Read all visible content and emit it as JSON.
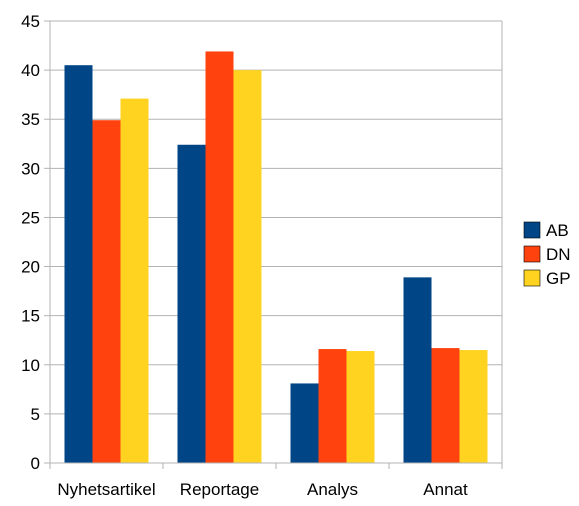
{
  "chart_data": {
    "type": "bar",
    "title": "",
    "xlabel": "",
    "ylabel": "",
    "categories": [
      "Nyhetsartikel",
      "Reportage",
      "Analys",
      "Annat"
    ],
    "series": [
      {
        "name": "AB",
        "values": [
          40.5,
          32.4,
          8.1,
          18.9
        ],
        "color": "#004586"
      },
      {
        "name": "DN",
        "values": [
          34.9,
          41.9,
          11.6,
          11.7
        ],
        "color": "#ff420e"
      },
      {
        "name": "GP",
        "values": [
          37.1,
          40.0,
          11.4,
          11.5
        ],
        "color": "#ffd320"
      }
    ],
    "ylim": [
      0,
      45
    ],
    "yticks": [
      0,
      5,
      10,
      15,
      20,
      25,
      30,
      35,
      40,
      45
    ],
    "grid": true,
    "legend_position": "right"
  }
}
